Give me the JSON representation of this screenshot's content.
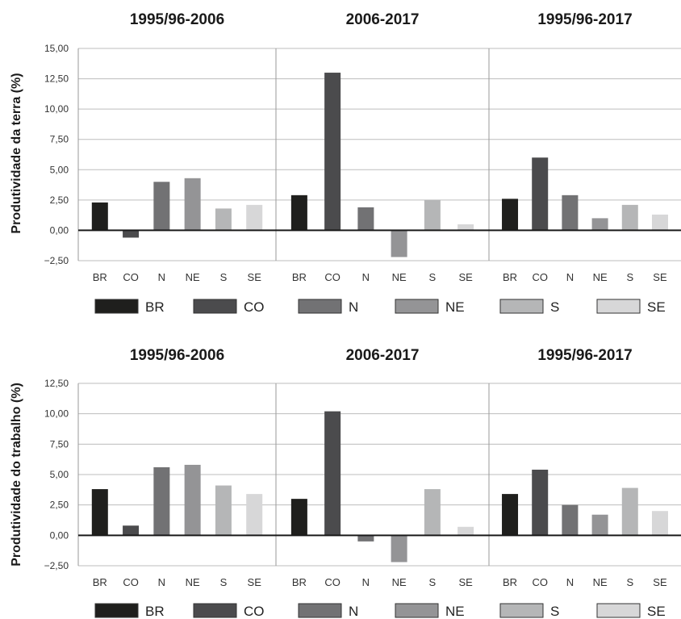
{
  "chart_data": [
    {
      "type": "bar",
      "ylabel": "Produtividade da terra (%)",
      "ylim": [
        -2.5,
        15
      ],
      "yticks": [
        "15,00",
        "12,50",
        "10,00",
        "7,50",
        "5,00",
        "2,50",
        "0,00",
        "−2,50"
      ],
      "categories": [
        "BR",
        "CO",
        "N",
        "NE",
        "S",
        "SE"
      ],
      "colors": [
        "#1f1f1d",
        "#4b4b4d",
        "#727274",
        "#949496",
        "#b5b6b7",
        "#d7d7d8"
      ],
      "legend": [
        "BR",
        "CO",
        "N",
        "NE",
        "S",
        "SE"
      ],
      "grid": true,
      "panels": [
        {
          "title": "1995/96-2006",
          "values": [
            2.3,
            -0.6,
            4.0,
            4.3,
            1.8,
            2.1
          ]
        },
        {
          "title": "2006-2017",
          "values": [
            2.9,
            13.0,
            1.9,
            -2.2,
            2.5,
            0.5
          ]
        },
        {
          "title": "1995/96-2017",
          "values": [
            2.6,
            6.0,
            2.9,
            1.0,
            2.1,
            1.3
          ]
        }
      ]
    },
    {
      "type": "bar",
      "ylabel": "Produtividade do trabalho (%)",
      "ylim": [
        -2.5,
        12.5
      ],
      "yticks": [
        "12,50",
        "10,00",
        "7,50",
        "5,00",
        "2,50",
        "0,00",
        "−2,50"
      ],
      "categories": [
        "BR",
        "CO",
        "N",
        "NE",
        "S",
        "SE"
      ],
      "colors": [
        "#1f1f1d",
        "#4b4b4d",
        "#727274",
        "#949496",
        "#b5b6b7",
        "#d7d7d8"
      ],
      "legend": [
        "BR",
        "CO",
        "N",
        "NE",
        "S",
        "SE"
      ],
      "grid": true,
      "panels": [
        {
          "title": "1995/96-2006",
          "values": [
            3.8,
            0.8,
            5.6,
            5.8,
            4.1,
            3.4
          ]
        },
        {
          "title": "2006-2017",
          "values": [
            3.0,
            10.2,
            -0.5,
            -2.2,
            3.8,
            0.7
          ]
        },
        {
          "title": "1995/96-2017",
          "values": [
            3.4,
            5.4,
            2.5,
            1.7,
            3.9,
            2.0
          ]
        }
      ]
    }
  ]
}
